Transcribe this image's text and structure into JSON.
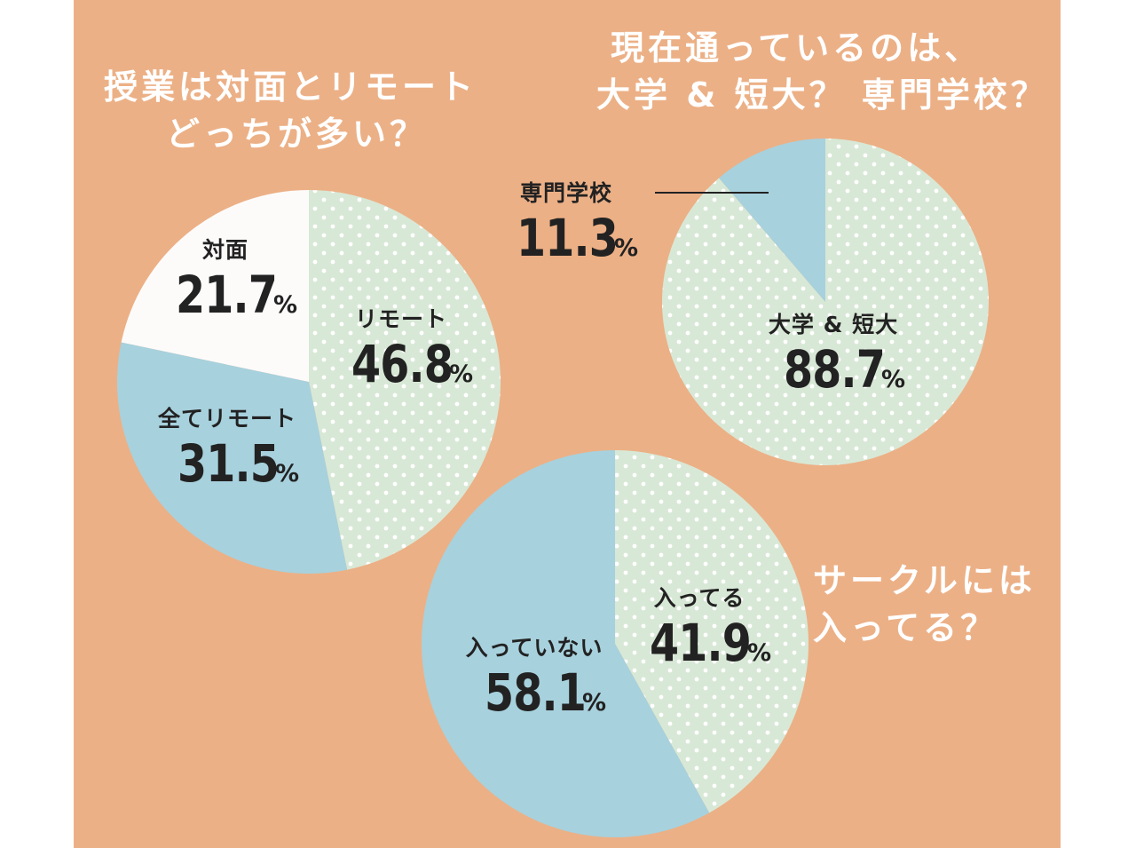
{
  "chart_data": [
    {
      "type": "pie",
      "title": "授業は対面とリモートどっちが多い？",
      "title_lines": [
        "授業は対面とリモート",
        "どっちが多い？"
      ],
      "slices": [
        {
          "label": "リモート",
          "value": 46.8,
          "pattern": "dots",
          "color": "#d8e8d6"
        },
        {
          "label": "全てリモート",
          "value": 31.5,
          "pattern": "solid",
          "color": "#a7d1dd"
        },
        {
          "label": "対面",
          "value": 21.7,
          "pattern": "solid",
          "color": "#fdfbfa"
        }
      ],
      "unit": "%"
    },
    {
      "type": "pie",
      "title": "現在通っているのは、大学 & 短大？ 専門学校？",
      "title_lines": [
        "現在通っているのは、",
        "大学 & 短大？ 専門学校？"
      ],
      "slices": [
        {
          "label": "大学 & 短大",
          "value": 88.7,
          "pattern": "dots",
          "color": "#d8e8d6"
        },
        {
          "label": "専門学校",
          "value": 11.3,
          "pattern": "solid",
          "color": "#a7d1dd"
        }
      ],
      "unit": "%"
    },
    {
      "type": "pie",
      "title": "サークルには入ってる？",
      "title_lines": [
        "サークルには",
        "入ってる？"
      ],
      "slices": [
        {
          "label": "入ってる",
          "value": 41.9,
          "pattern": "dots",
          "color": "#d8e8d6"
        },
        {
          "label": "入っていない",
          "value": 58.1,
          "pattern": "solid",
          "color": "#a7d1dd"
        }
      ],
      "unit": "%"
    }
  ],
  "colors": {
    "background": "#ecb086",
    "dot_fill": "#d8e8d6",
    "dot": "#ffffff",
    "blue": "#a7d1dd",
    "white": "#fdfbfa",
    "text": "#222222",
    "title": "#ffffff",
    "leader_line": "#222222"
  }
}
